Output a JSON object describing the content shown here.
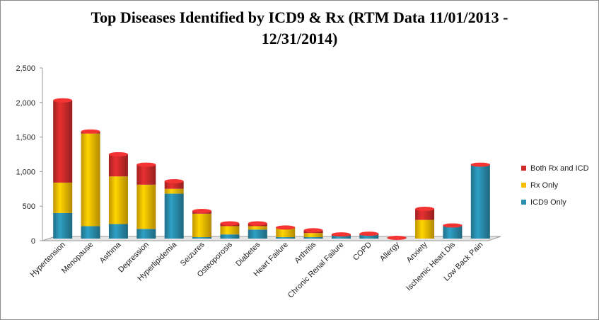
{
  "chart_data": {
    "type": "bar",
    "stacked": true,
    "title_line1": "Top Diseases Identified by ICD9 & Rx (RTM Data 11/01/2013 -",
    "title_line2": "12/31/2014)",
    "categories": [
      "Hypertension",
      "Menopause",
      "Asthma",
      "Depression",
      "Hyperlipidemia",
      "Seizures",
      "Osteoporosis",
      "Diabetes",
      "Heart Failure",
      "Arthritis",
      "Chronic Renal Failure",
      "COPD",
      "Allergy",
      "Anxiety",
      "Ischemic Heart Dis",
      "Low Back Pain"
    ],
    "series": [
      {
        "name": "ICD9 Only",
        "color": "#2a8faf",
        "values": [
          370,
          180,
          210,
          140,
          650,
          20,
          60,
          130,
          20,
          20,
          40,
          50,
          0,
          0,
          180,
          1060
        ]
      },
      {
        "name": "Rx Only",
        "color": "#f7be00",
        "values": [
          440,
          1340,
          690,
          640,
          70,
          340,
          120,
          50,
          130,
          60,
          0,
          0,
          0,
          270,
          0,
          0
        ]
      },
      {
        "name": "Both Rx and ICD",
        "color": "#cf2b2b",
        "values": [
          1190,
          30,
          320,
          290,
          110,
          40,
          40,
          40,
          10,
          40,
          20,
          20,
          10,
          160,
          10,
          10
        ]
      }
    ],
    "yticks": [
      "0",
      "500",
      "1,000",
      "1,500",
      "2,000",
      "2,500"
    ],
    "ylim": [
      0,
      2500
    ],
    "legend_position": "right"
  }
}
